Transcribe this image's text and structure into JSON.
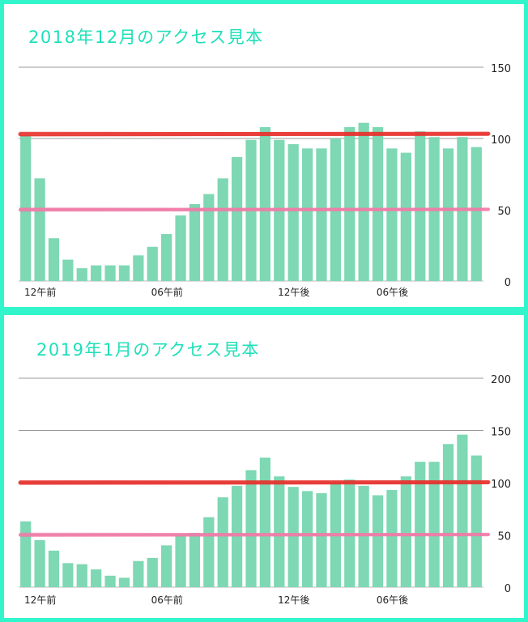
{
  "colors": {
    "frame": "#33f5cc",
    "title": "#1fe0b8",
    "bar": "#7dd8b3",
    "gridline": "#999999",
    "axis_text": "#222222",
    "line_high": "#e8322e",
    "line_low": "#f27aa8"
  },
  "chart_data": [
    {
      "type": "bar",
      "title": "2018年12月のアクセス見本",
      "x_tick_labels": [
        "12午前",
        "06午前",
        "12午後",
        "06午後"
      ],
      "y_ticks": [
        "150",
        "100",
        "50",
        "0"
      ],
      "ylim": [
        0,
        150
      ],
      "grid": true,
      "reference_lines": [
        {
          "value": 103,
          "color": "#e8322e"
        },
        {
          "value": 50,
          "color": "#f27aa8"
        }
      ],
      "values": [
        102,
        72,
        30,
        15,
        9,
        11,
        11,
        11,
        18,
        24,
        33,
        46,
        54,
        61,
        72,
        87,
        99,
        108,
        99,
        96,
        93,
        93,
        100,
        108,
        111,
        108,
        93,
        90,
        105,
        101,
        93,
        101,
        94
      ]
    },
    {
      "type": "bar",
      "title": "2019年1月のアクセス見本",
      "x_tick_labels": [
        "12午前",
        "06午前",
        "12午後",
        "06午後"
      ],
      "y_ticks": [
        "200",
        "150",
        "100",
        "50",
        "0"
      ],
      "ylim": [
        0,
        200
      ],
      "grid": true,
      "reference_lines": [
        {
          "value": 100,
          "color": "#e8322e"
        },
        {
          "value": 50,
          "color": "#f27aa8"
        }
      ],
      "values": [
        63,
        45,
        35,
        23,
        22,
        17,
        11,
        9,
        25,
        28,
        40,
        50,
        52,
        67,
        86,
        97,
        112,
        124,
        106,
        96,
        92,
        90,
        100,
        103,
        97,
        88,
        93,
        106,
        120,
        120,
        137,
        146,
        126
      ]
    }
  ]
}
